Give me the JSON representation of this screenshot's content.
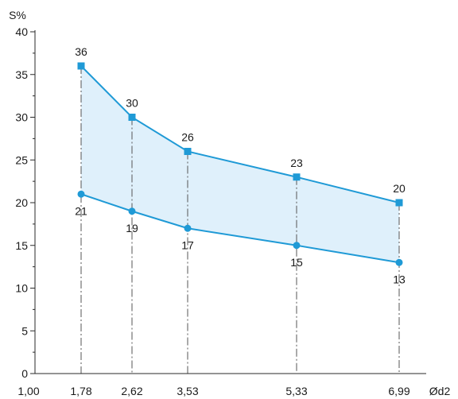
{
  "chart_data": {
    "type": "area",
    "title": "",
    "xlabel": "Ød2",
    "ylabel": "S%",
    "x_tick_labels": [
      "1,00",
      "1,78",
      "2,62",
      "3,53",
      "5,33",
      "6,99"
    ],
    "x": [
      1.78,
      2.62,
      3.53,
      5.33,
      6.99
    ],
    "xlim": [
      1.0,
      7.5
    ],
    "ylim": [
      0,
      40
    ],
    "y_ticks": [
      0,
      5,
      10,
      15,
      20,
      25,
      30,
      35,
      40
    ],
    "y_tick_labels": [
      "0",
      "5",
      "10",
      "15",
      "20",
      "25",
      "30",
      "35",
      "40"
    ],
    "grid": false,
    "series": [
      {
        "values": [
          36,
          30,
          26,
          23,
          20
        ],
        "marker": "square",
        "labels": [
          "36",
          "30",
          "26",
          "23",
          "20"
        ]
      },
      {
        "values": [
          21,
          19,
          17,
          15,
          13
        ],
        "marker": "circle",
        "labels": [
          "21",
          "19",
          "17",
          "15",
          "13"
        ]
      }
    ],
    "colors": {
      "line": "#1f9ad6",
      "fill": "#dff0fb",
      "axis": "#2a2a2a",
      "guide": "#555555"
    }
  }
}
